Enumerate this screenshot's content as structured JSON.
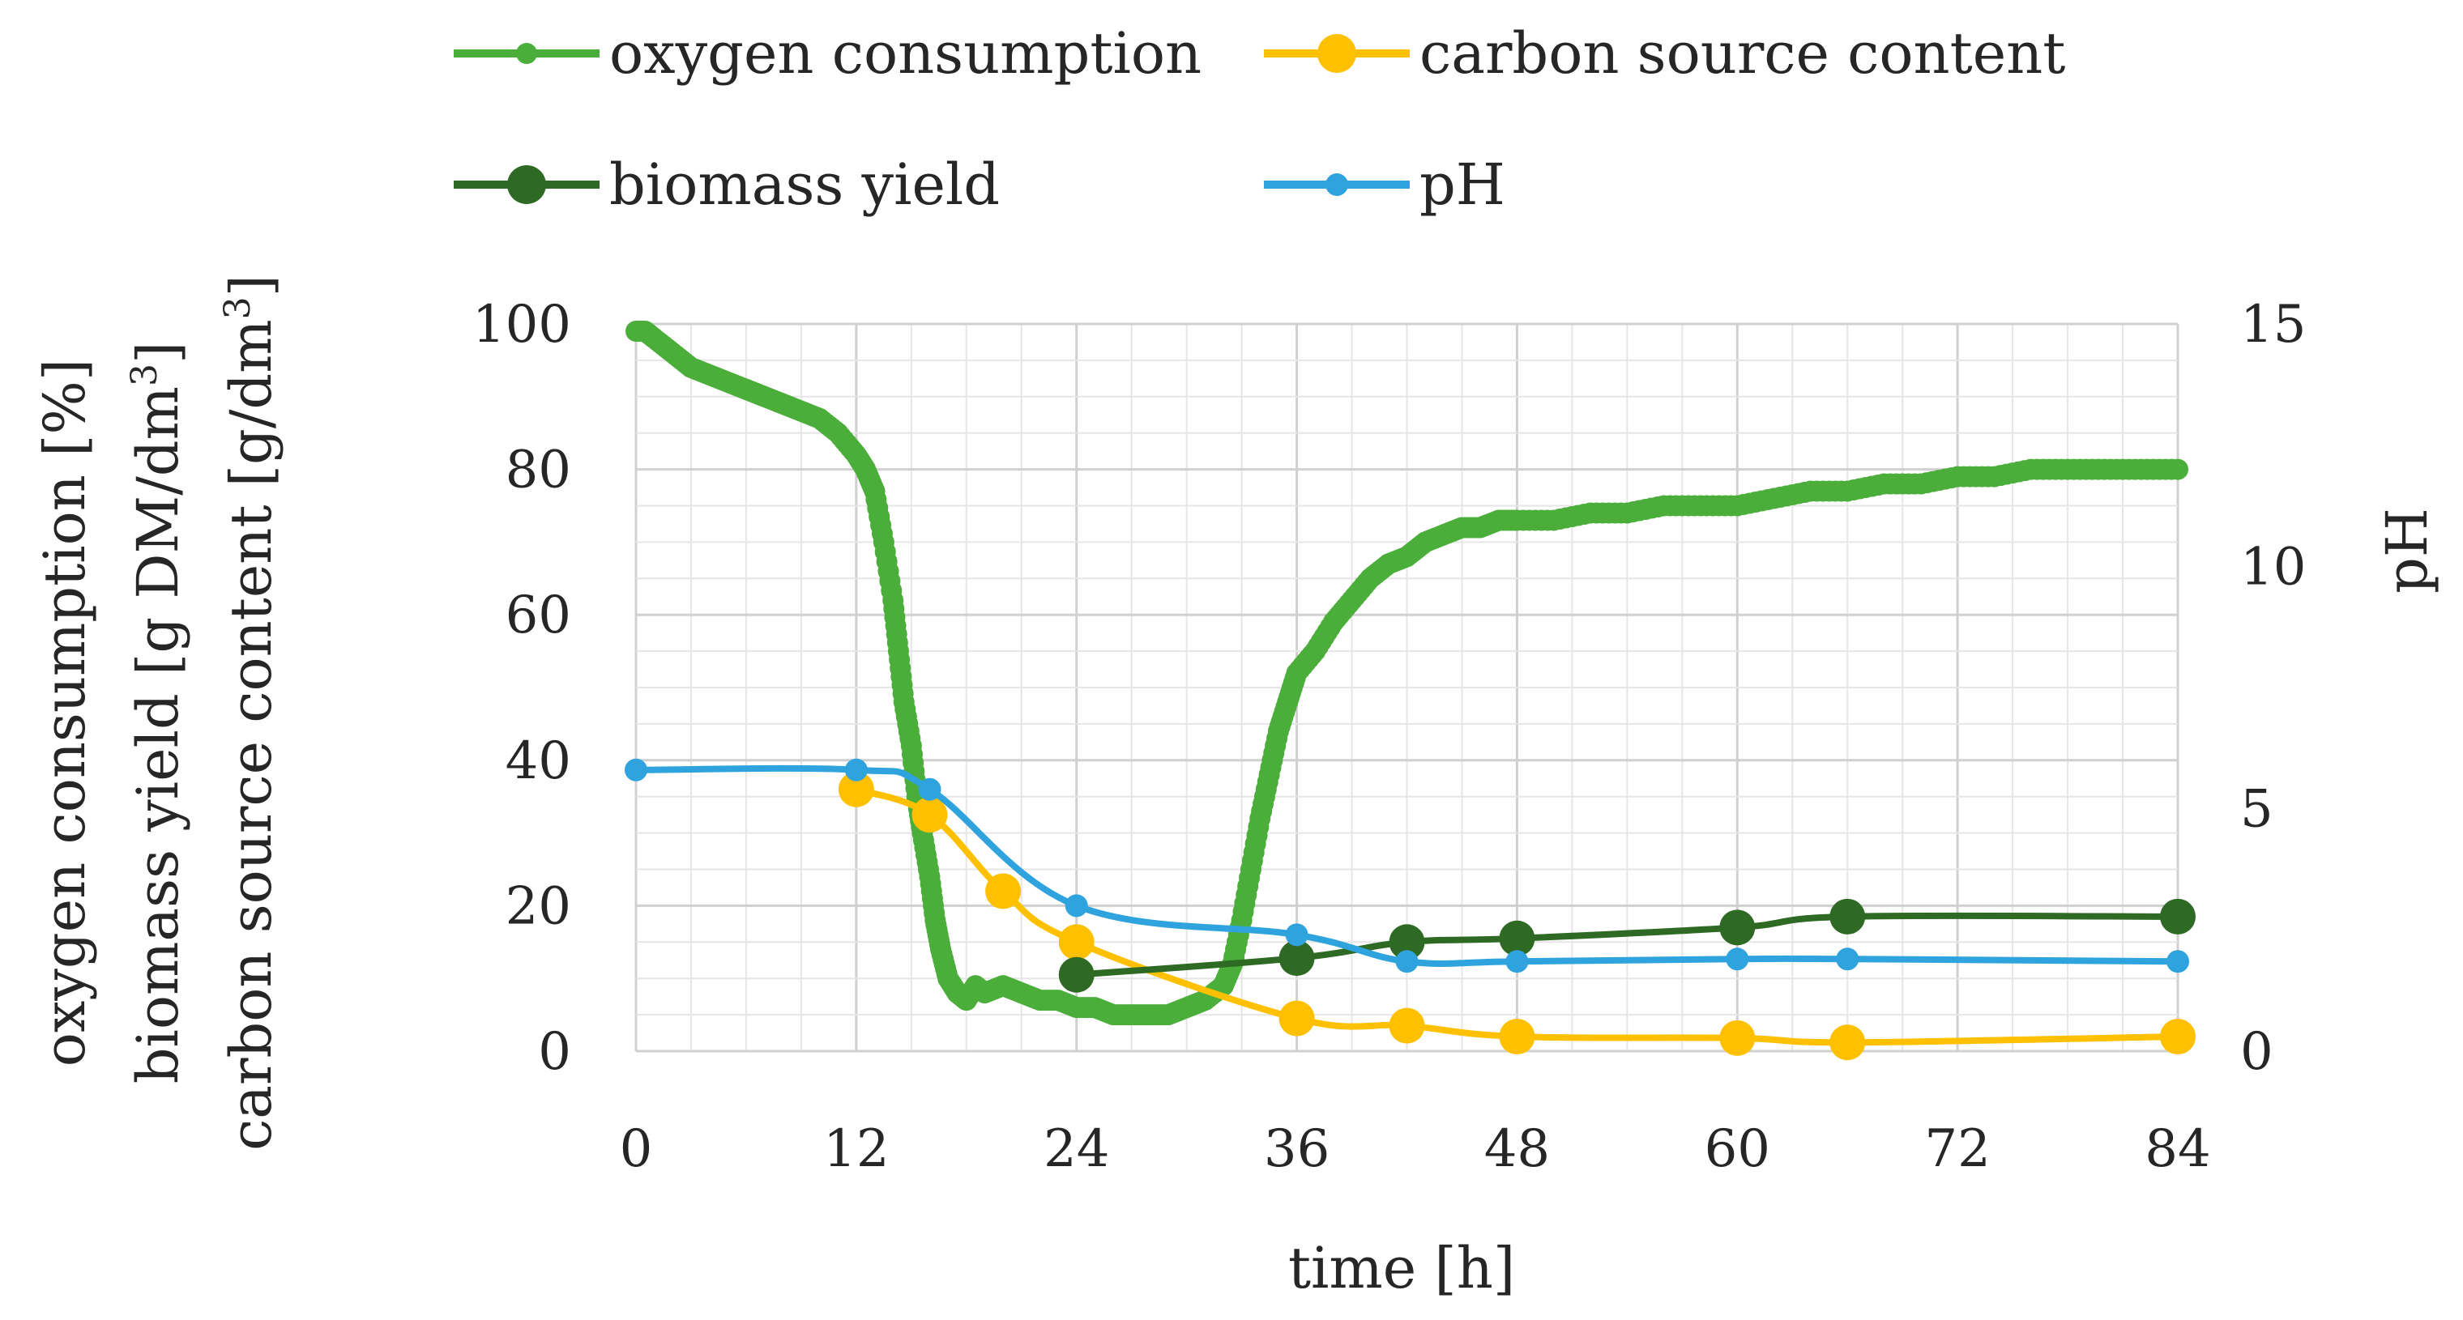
{
  "chart_data": {
    "type": "line",
    "title": "",
    "xlabel": "time [h]",
    "ylabel_lines": [
      "oxygen consumption [%]",
      "biomass yield [g DM/dm",
      "carbon source content [g/dm"
    ],
    "ylabel_superscripts": [
      "",
      "3",
      "3"
    ],
    "ylabel_close": [
      "",
      "]",
      "]"
    ],
    "y2label": "pH",
    "xlim": [
      0,
      84
    ],
    "ylim": [
      0,
      100
    ],
    "y2lim": [
      0,
      15
    ],
    "xticks": [
      "0",
      "12",
      "24",
      "36",
      "48",
      "60",
      "72",
      "84"
    ],
    "yticks": [
      "0",
      "20",
      "40",
      "60",
      "80",
      "100"
    ],
    "y2ticks": [
      "0",
      "5",
      "10",
      "15"
    ],
    "grid": true,
    "legend_position": "top",
    "series": [
      {
        "name": "oxygen consumption",
        "axis": "left",
        "color": "#4BAE3A",
        "marker": "dense",
        "x": [
          0,
          0.5,
          1,
          2,
          3,
          4,
          5,
          6,
          7,
          8,
          9,
          10,
          11,
          12,
          12.5,
          13,
          13.5,
          14,
          14.3,
          14.6,
          15,
          15.3,
          15.6,
          16,
          16.3,
          16.6,
          17,
          17.5,
          18,
          18.5,
          19,
          20,
          21,
          22,
          23,
          24,
          25,
          26,
          27,
          28,
          29,
          30,
          31,
          32,
          32.5,
          33,
          33.5,
          34,
          34.5,
          35,
          35.5,
          36,
          37,
          38,
          39,
          40,
          41,
          42,
          43,
          44,
          45,
          46,
          47,
          48,
          50,
          52,
          54,
          56,
          58,
          60,
          62,
          64,
          66,
          68,
          70,
          72,
          74,
          76,
          78,
          80,
          82,
          84
        ],
        "values": [
          99,
          99,
          98,
          96,
          94,
          93,
          92,
          91,
          90,
          89,
          88,
          87,
          85,
          82,
          80,
          77,
          70,
          62,
          55,
          48,
          42,
          35,
          30,
          24,
          18,
          14,
          10,
          8,
          7,
          9,
          8,
          9,
          8,
          7,
          7,
          6,
          6,
          5,
          5,
          5,
          5,
          6,
          7,
          9,
          12,
          18,
          25,
          32,
          38,
          44,
          48,
          52,
          55,
          59,
          62,
          65,
          67,
          68,
          70,
          71,
          72,
          72,
          73,
          73,
          73,
          74,
          74,
          75,
          75,
          75,
          76,
          77,
          77,
          78,
          78,
          79,
          79,
          80,
          80,
          80,
          80,
          80
        ]
      },
      {
        "name": "carbon source content",
        "axis": "left",
        "color": "#FFC000",
        "marker": "large",
        "x": [
          12,
          16,
          20,
          24,
          36,
          42,
          48,
          60,
          66,
          84
        ],
        "values": [
          36,
          32.5,
          22,
          15,
          4.5,
          3.5,
          2,
          1.8,
          1.2,
          2
        ]
      },
      {
        "name": "biomass yield",
        "axis": "left",
        "color": "#2E6A24",
        "marker": "large",
        "x": [
          24,
          36,
          42,
          48,
          60,
          66,
          84
        ],
        "values": [
          10.5,
          12.8,
          15,
          15.5,
          17,
          18.5,
          18.5
        ]
      },
      {
        "name": "pH",
        "axis": "right",
        "color": "#2FA3DD",
        "marker": "small",
        "x": [
          0,
          12,
          16,
          24,
          36,
          42,
          48,
          60,
          66,
          84
        ],
        "values": [
          5.8,
          5.8,
          5.4,
          3.0,
          2.4,
          1.85,
          1.85,
          1.9,
          1.9,
          1.85
        ]
      }
    ]
  }
}
